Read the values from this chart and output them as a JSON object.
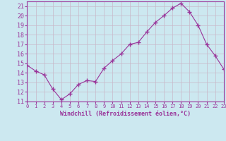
{
  "x": [
    0,
    1,
    2,
    3,
    4,
    5,
    6,
    7,
    8,
    9,
    10,
    11,
    12,
    13,
    14,
    15,
    16,
    17,
    18,
    19,
    20,
    21,
    22,
    23
  ],
  "y": [
    14.8,
    14.2,
    13.8,
    12.3,
    11.2,
    11.8,
    12.8,
    13.2,
    13.1,
    14.5,
    15.3,
    16.0,
    17.0,
    17.2,
    18.3,
    19.3,
    20.0,
    20.8,
    21.3,
    20.4,
    19.0,
    17.0,
    15.8,
    14.4
  ],
  "line_color": "#993399",
  "marker": "+",
  "marker_size": 4,
  "bg_color": "#cce8f0",
  "grid_color": "#c8b8c8",
  "xlabel": "Windchill (Refroidissement éolien,°C)",
  "xlabel_color": "#993399",
  "tick_color": "#993399",
  "axis_color": "#993399",
  "ylim": [
    11,
    21.5
  ],
  "xlim": [
    0,
    23
  ],
  "yticks": [
    11,
    12,
    13,
    14,
    15,
    16,
    17,
    18,
    19,
    20,
    21
  ],
  "xticks": [
    0,
    1,
    2,
    3,
    4,
    5,
    6,
    7,
    8,
    9,
    10,
    11,
    12,
    13,
    14,
    15,
    16,
    17,
    18,
    19,
    20,
    21,
    22,
    23
  ]
}
